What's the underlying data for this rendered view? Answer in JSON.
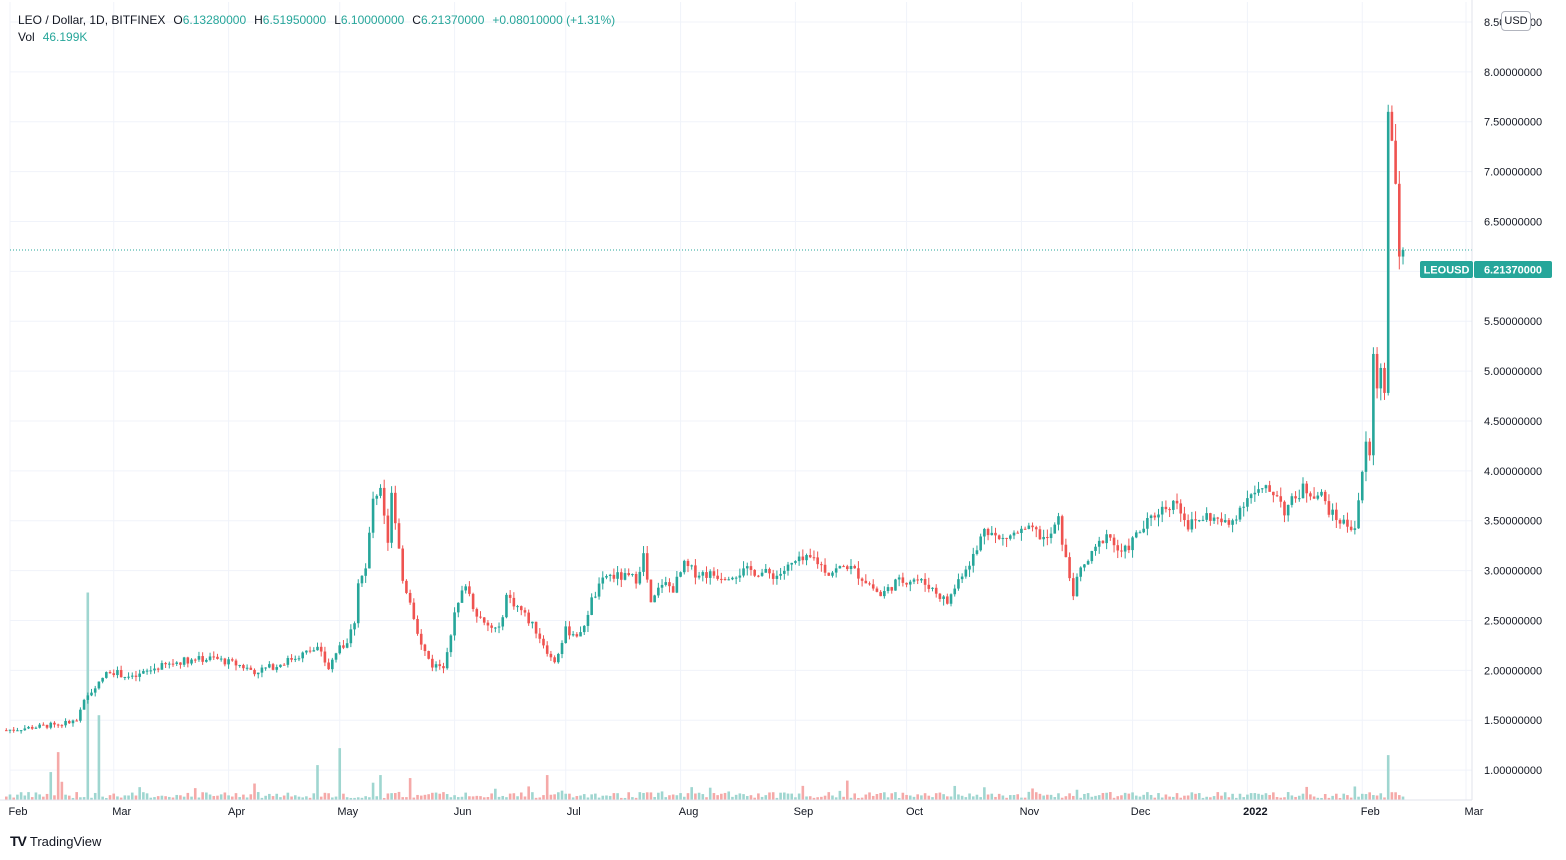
{
  "legend": {
    "symbol": "LEO / Dollar, 1D, BITFINEX",
    "open_key": "O",
    "open": "6.13280000",
    "high_key": "H",
    "high": "6.51950000",
    "low_key": "L",
    "low": "6.10000000",
    "close_key": "C",
    "close": "6.21370000",
    "change": "+0.08010000 (+1.31%)",
    "vol_key": "Vol",
    "vol": "46.199K"
  },
  "currency_label": "USD",
  "brand": {
    "name": "TradingView",
    "logo": "TV"
  },
  "price_tag": {
    "ticker": "LEOUSD",
    "value": "6.21370000"
  },
  "colors": {
    "up": "#26a69a",
    "down": "#ef5350",
    "vol_up": "#9fd6d0",
    "vol_down": "#f5a9a8",
    "grid": "#f0f3fa"
  },
  "chart_data": {
    "type": "candlestick",
    "symbol": "LEO / Dollar",
    "interval": "1D",
    "exchange": "BITFINEX",
    "y_axis": {
      "range": [
        0.7,
        8.7
      ],
      "ticks": [
        "1.00000000",
        "1.50000000",
        "2.00000000",
        "2.50000000",
        "3.00000000",
        "3.50000000",
        "4.00000000",
        "4.50000000",
        "5.00000000",
        "5.50000000",
        "6.00000000",
        "6.50000000",
        "7.00000000",
        "7.50000000",
        "8.00000000",
        "8.50000000"
      ],
      "position": "right"
    },
    "x_axis": {
      "range": [
        "2021-02-01",
        "2022-03-01"
      ],
      "ticks": [
        {
          "label": "Feb",
          "date": "2021-02-01"
        },
        {
          "label": "Mar",
          "date": "2021-03-01"
        },
        {
          "label": "Apr",
          "date": "2021-04-01"
        },
        {
          "label": "May",
          "date": "2021-05-01"
        },
        {
          "label": "Jun",
          "date": "2021-06-01"
        },
        {
          "label": "Jul",
          "date": "2021-07-01"
        },
        {
          "label": "Aug",
          "date": "2021-08-01"
        },
        {
          "label": "Sep",
          "date": "2021-09-01"
        },
        {
          "label": "Oct",
          "date": "2021-10-01"
        },
        {
          "label": "Nov",
          "date": "2021-11-01"
        },
        {
          "label": "Dec",
          "date": "2021-12-01"
        },
        {
          "label": "2022",
          "date": "2022-01-01",
          "bold": true
        },
        {
          "label": "Feb",
          "date": "2022-02-01"
        },
        {
          "label": "Mar",
          "date": "2022-03-01"
        }
      ]
    },
    "grid": true,
    "last_close": 6.2137,
    "close_path": [
      [
        "2021-01-31",
        1.4
      ],
      [
        "2021-02-10",
        1.44
      ],
      [
        "2021-02-19",
        1.49
      ],
      [
        "2021-02-21",
        1.68
      ],
      [
        "2021-02-24",
        1.85
      ],
      [
        "2021-02-28",
        2.0
      ],
      [
        "2021-03-06",
        1.92
      ],
      [
        "2021-03-12",
        2.02
      ],
      [
        "2021-03-20",
        2.1
      ],
      [
        "2021-03-28",
        2.12
      ],
      [
        "2021-04-04",
        2.05
      ],
      [
        "2021-04-08",
        1.99
      ],
      [
        "2021-04-14",
        2.05
      ],
      [
        "2021-04-20",
        2.15
      ],
      [
        "2021-04-25",
        2.22
      ],
      [
        "2021-04-28",
        2.02
      ],
      [
        "2021-04-30",
        2.18
      ],
      [
        "2021-05-03",
        2.28
      ],
      [
        "2021-05-05",
        2.5
      ],
      [
        "2021-05-06",
        2.9
      ],
      [
        "2021-05-08",
        3.0
      ],
      [
        "2021-05-10",
        3.72
      ],
      [
        "2021-05-12",
        3.85
      ],
      [
        "2021-05-14",
        3.3
      ],
      [
        "2021-05-15",
        3.8
      ],
      [
        "2021-05-18",
        2.9
      ],
      [
        "2021-05-20",
        2.7
      ],
      [
        "2021-05-23",
        2.25
      ],
      [
        "2021-05-26",
        2.05
      ],
      [
        "2021-05-29",
        2.05
      ],
      [
        "2021-06-01",
        2.55
      ],
      [
        "2021-06-04",
        2.88
      ],
      [
        "2021-06-06",
        2.65
      ],
      [
        "2021-06-09",
        2.45
      ],
      [
        "2021-06-13",
        2.4
      ],
      [
        "2021-06-15",
        2.75
      ],
      [
        "2021-06-19",
        2.6
      ],
      [
        "2021-06-23",
        2.4
      ],
      [
        "2021-06-26",
        2.2
      ],
      [
        "2021-06-28",
        2.1
      ],
      [
        "2021-07-01",
        2.4
      ],
      [
        "2021-07-05",
        2.35
      ],
      [
        "2021-07-08",
        2.7
      ],
      [
        "2021-07-12",
        2.95
      ],
      [
        "2021-07-20",
        2.92
      ],
      [
        "2021-07-22",
        3.15
      ],
      [
        "2021-07-24",
        2.65
      ],
      [
        "2021-07-27",
        2.88
      ],
      [
        "2021-07-30",
        2.82
      ],
      [
        "2021-08-02",
        3.05
      ],
      [
        "2021-08-05",
        2.98
      ],
      [
        "2021-08-12",
        2.95
      ],
      [
        "2021-08-20",
        3.0
      ],
      [
        "2021-08-27",
        2.95
      ],
      [
        "2021-09-01",
        3.08
      ],
      [
        "2021-09-06",
        3.12
      ],
      [
        "2021-09-10",
        2.98
      ],
      [
        "2021-09-15",
        3.05
      ],
      [
        "2021-09-20",
        2.9
      ],
      [
        "2021-09-24",
        2.75
      ],
      [
        "2021-09-28",
        2.88
      ],
      [
        "2021-10-03",
        2.92
      ],
      [
        "2021-10-07",
        2.85
      ],
      [
        "2021-10-12",
        2.68
      ],
      [
        "2021-10-16",
        2.98
      ],
      [
        "2021-10-20",
        3.2
      ],
      [
        "2021-10-22",
        3.45
      ],
      [
        "2021-10-26",
        3.3
      ],
      [
        "2021-10-31",
        3.38
      ],
      [
        "2021-11-04",
        3.4
      ],
      [
        "2021-11-08",
        3.3
      ],
      [
        "2021-11-11",
        3.5
      ],
      [
        "2021-11-13",
        3.1
      ],
      [
        "2021-11-15",
        2.78
      ],
      [
        "2021-11-17",
        3.0
      ],
      [
        "2021-11-20",
        3.15
      ],
      [
        "2021-11-24",
        3.38
      ],
      [
        "2021-11-28",
        3.15
      ],
      [
        "2021-12-02",
        3.35
      ],
      [
        "2021-12-08",
        3.6
      ],
      [
        "2021-12-13",
        3.7
      ],
      [
        "2021-12-16",
        3.45
      ],
      [
        "2021-12-21",
        3.55
      ],
      [
        "2021-12-27",
        3.45
      ],
      [
        "2022-01-01",
        3.75
      ],
      [
        "2022-01-06",
        3.8
      ],
      [
        "2022-01-09",
        3.78
      ],
      [
        "2022-01-11",
        3.6
      ],
      [
        "2022-01-16",
        3.82
      ],
      [
        "2022-01-21",
        3.75
      ],
      [
        "2022-01-24",
        3.55
      ],
      [
        "2022-01-28",
        3.45
      ],
      [
        "2022-01-30",
        3.45
      ],
      [
        "2022-01-31",
        3.72
      ],
      [
        "2022-02-02",
        4.25
      ],
      [
        "2022-02-03",
        4.15
      ],
      [
        "2022-02-04",
        5.15
      ],
      [
        "2022-02-05",
        4.85
      ],
      [
        "2022-02-06",
        5.05
      ],
      [
        "2022-02-07",
        4.85
      ],
      [
        "2022-02-08",
        7.55
      ],
      [
        "2022-02-09",
        7.35
      ],
      [
        "2022-02-10",
        6.8
      ],
      [
        "2022-02-11",
        6.13
      ],
      [
        "2022-02-12",
        6.21
      ]
    ],
    "volume_spikes": [
      [
        "2021-02-22",
        2.78
      ],
      [
        "2021-02-25",
        1.55
      ],
      [
        "2021-05-01",
        1.22
      ],
      [
        "2021-02-14",
        1.18
      ],
      [
        "2022-02-08",
        1.15
      ],
      [
        "2021-04-25",
        1.05
      ],
      [
        "2021-05-12",
        0.95
      ],
      [
        "2021-06-26",
        0.95
      ],
      [
        "2021-05-20",
        0.92
      ],
      [
        "2021-02-12",
        0.98
      ]
    ]
  }
}
